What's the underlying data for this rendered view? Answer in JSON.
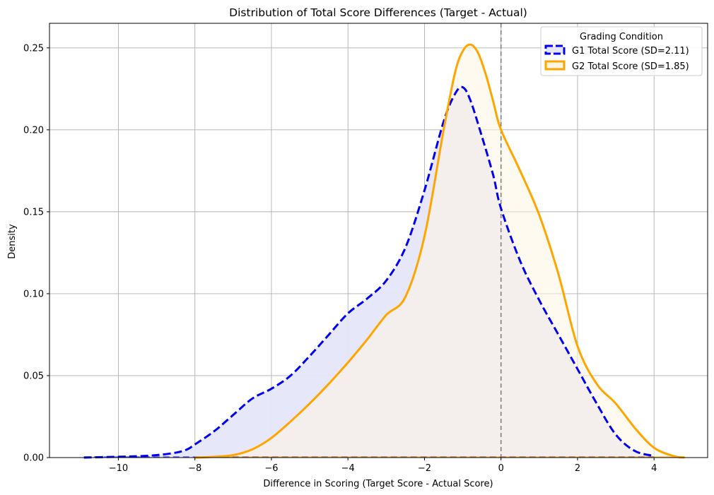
{
  "chart_data": {
    "type": "area",
    "title": "Distribution of Total Score Differences (Target - Actual)",
    "xlabel": "Difference in Scoring (Target Score - Actual Score)",
    "ylabel": "Density",
    "xlim": [
      -11.8,
      5.4
    ],
    "ylim": [
      0,
      0.265
    ],
    "xticks": [
      -10,
      -8,
      -6,
      -4,
      -2,
      0,
      2,
      4
    ],
    "xtick_labels": [
      "−10",
      "−8",
      "−6",
      "−4",
      "−2",
      "0",
      "2",
      "4"
    ],
    "yticks": [
      0.0,
      0.05,
      0.1,
      0.15,
      0.2,
      0.25
    ],
    "ytick_labels": [
      "0.00",
      "0.05",
      "0.10",
      "0.15",
      "0.20",
      "0.25"
    ],
    "grid": true,
    "reference_line": {
      "x": 0,
      "style": "dashed",
      "color": "#808080"
    },
    "legend": {
      "title": "Grading Condition",
      "placement": "top-right",
      "entries": [
        "G1 Total Score (SD=2.11)",
        "G2 Total Score (SD=1.85)"
      ]
    },
    "series": [
      {
        "name": "G1 Total Score (SD=2.11)",
        "color": "#0000ee",
        "fill": "#e6e6fa",
        "line_style": "dashed",
        "x": [
          -10.9,
          -10,
          -9.5,
          -9,
          -8.5,
          -8.2,
          -8,
          -7.5,
          -7,
          -6.5,
          -6,
          -5.5,
          -5,
          -4.5,
          -4,
          -3.5,
          -3,
          -2.5,
          -2,
          -1.5,
          -1.2,
          -1,
          -0.8,
          -0.5,
          -0.2,
          0,
          0.5,
          1,
          1.5,
          2,
          2.5,
          3,
          3.5,
          4
        ],
        "y": [
          0.0,
          0.0005,
          0.0008,
          0.0015,
          0.003,
          0.005,
          0.008,
          0.016,
          0.026,
          0.036,
          0.042,
          0.05,
          0.062,
          0.075,
          0.088,
          0.097,
          0.108,
          0.128,
          0.163,
          0.205,
          0.222,
          0.226,
          0.218,
          0.196,
          0.172,
          0.152,
          0.12,
          0.096,
          0.075,
          0.054,
          0.033,
          0.014,
          0.004,
          0.001
        ]
      },
      {
        "name": "G2 Total Score (SD=1.85)",
        "color": "#ffa500",
        "fill": "#fff5e1",
        "line_style": "solid",
        "x": [
          -8,
          -7.5,
          -7,
          -6.5,
          -6,
          -5.5,
          -5,
          -4.5,
          -4,
          -3.5,
          -3,
          -2.5,
          -2,
          -1.5,
          -1.2,
          -1,
          -0.8,
          -0.6,
          -0.4,
          -0.2,
          0,
          0.5,
          1,
          1.5,
          2,
          2.5,
          3,
          3.5,
          4,
          4.5,
          4.8
        ],
        "y": [
          0.0,
          0.0005,
          0.0015,
          0.005,
          0.012,
          0.022,
          0.033,
          0.045,
          0.058,
          0.072,
          0.087,
          0.098,
          0.135,
          0.2,
          0.235,
          0.248,
          0.252,
          0.247,
          0.234,
          0.217,
          0.2,
          0.175,
          0.148,
          0.112,
          0.068,
          0.045,
          0.033,
          0.018,
          0.006,
          0.001,
          0.0
        ]
      }
    ]
  }
}
